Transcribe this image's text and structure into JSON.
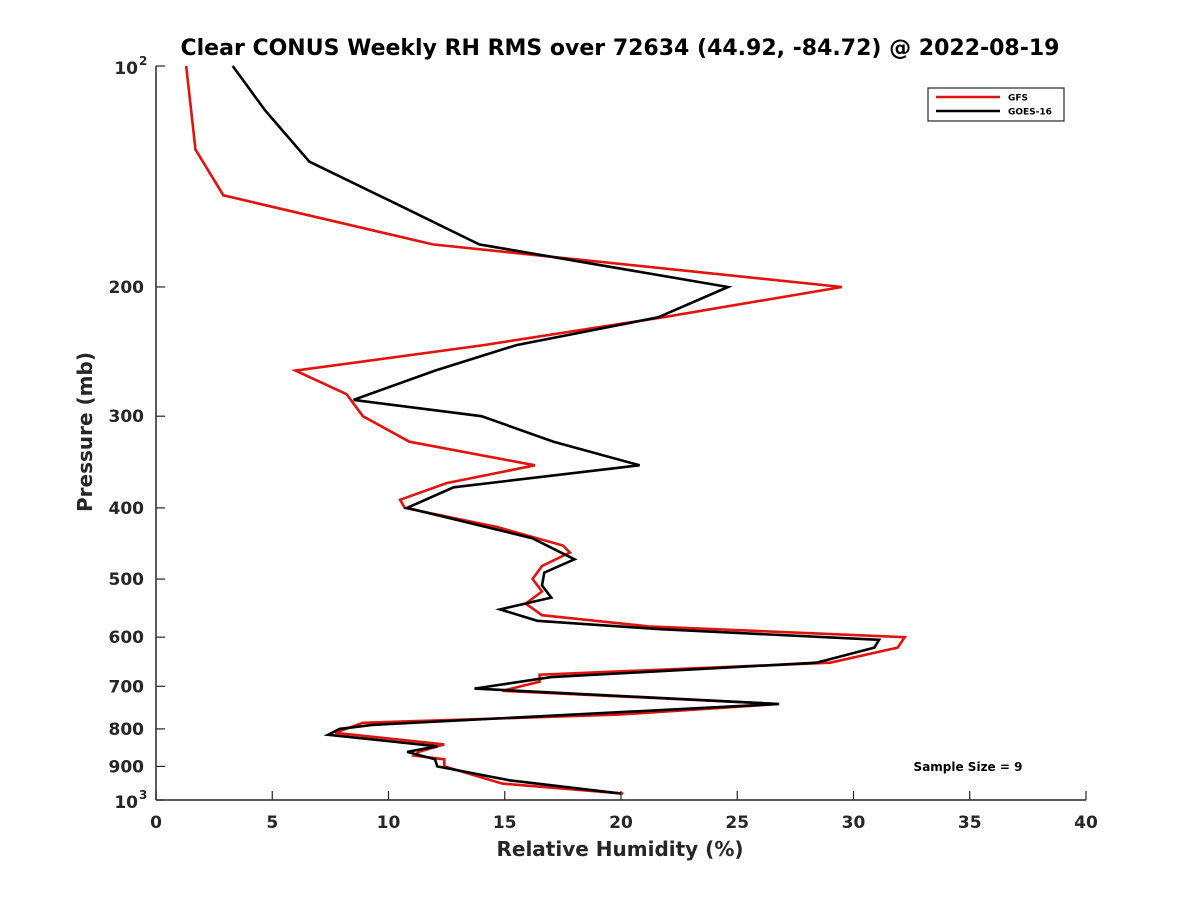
{
  "chart_data": {
    "type": "line",
    "title": "Clear CONUS Weekly RH RMS over 72634 (44.92, -84.72) @ 2022-08-19",
    "xlabel": "Relative Humidity (%)",
    "ylabel": "Pressure (mb)",
    "xlim": [
      0,
      40
    ],
    "ylim": [
      100,
      1000
    ],
    "yscale": "log",
    "y_reversed": true,
    "x_ticks": [
      0,
      5,
      10,
      15,
      20,
      25,
      30,
      35,
      40
    ],
    "y_ticks": [
      {
        "value": 100,
        "label": "10",
        "exponent": "2"
      },
      {
        "value": 200,
        "label": "200"
      },
      {
        "value": 300,
        "label": "300"
      },
      {
        "value": 400,
        "label": "400"
      },
      {
        "value": 500,
        "label": "500"
      },
      {
        "value": 600,
        "label": "600"
      },
      {
        "value": 700,
        "label": "700"
      },
      {
        "value": 800,
        "label": "800"
      },
      {
        "value": 900,
        "label": "900"
      },
      {
        "value": 1000,
        "label": "10",
        "exponent": "3"
      }
    ],
    "legend_position": "top-right",
    "annotation": "Sample Size = 9",
    "series": [
      {
        "name": "GFS",
        "color": "#e3120b",
        "points": [
          [
            1.3,
            100
          ],
          [
            1.7,
            130
          ],
          [
            2.9,
            150
          ],
          [
            11.9,
            175
          ],
          [
            29.5,
            200
          ],
          [
            21.8,
            220
          ],
          [
            14.1,
            240
          ],
          [
            6.0,
            260
          ],
          [
            8.2,
            280
          ],
          [
            8.9,
            300
          ],
          [
            10.9,
            325
          ],
          [
            16.3,
            350
          ],
          [
            12.5,
            370
          ],
          [
            10.5,
            390
          ],
          [
            10.7,
            400
          ],
          [
            14.7,
            425
          ],
          [
            17.5,
            450
          ],
          [
            17.8,
            460
          ],
          [
            16.6,
            480
          ],
          [
            16.2,
            500
          ],
          [
            16.6,
            520
          ],
          [
            15.9,
            540
          ],
          [
            16.6,
            560
          ],
          [
            21.2,
            580
          ],
          [
            32.2,
            600
          ],
          [
            31.9,
            620
          ],
          [
            29.0,
            650
          ],
          [
            16.5,
            675
          ],
          [
            16.5,
            690
          ],
          [
            14.9,
            710
          ],
          [
            26.8,
            740
          ],
          [
            19.9,
            765
          ],
          [
            8.9,
            785
          ],
          [
            7.7,
            810
          ],
          [
            12.4,
            840
          ],
          [
            11.3,
            860
          ],
          [
            11.1,
            870
          ],
          [
            12.4,
            880
          ],
          [
            12.4,
            900
          ],
          [
            14.9,
            950
          ],
          [
            20.1,
            980
          ]
        ]
      },
      {
        "name": "GOES-16",
        "color": "#000000",
        "points": [
          [
            3.3,
            100
          ],
          [
            4.7,
            115
          ],
          [
            6.6,
            135
          ],
          [
            10.5,
            155
          ],
          [
            13.9,
            175
          ],
          [
            24.6,
            200
          ],
          [
            21.6,
            220
          ],
          [
            15.5,
            240
          ],
          [
            12.0,
            260
          ],
          [
            8.5,
            285
          ],
          [
            14.0,
            300
          ],
          [
            17.1,
            325
          ],
          [
            20.8,
            350
          ],
          [
            12.8,
            375
          ],
          [
            10.8,
            400
          ],
          [
            16.2,
            440
          ],
          [
            18.0,
            470
          ],
          [
            16.7,
            490
          ],
          [
            16.6,
            510
          ],
          [
            17.0,
            530
          ],
          [
            14.8,
            550
          ],
          [
            16.4,
            570
          ],
          [
            21.6,
            585
          ],
          [
            31.1,
            605
          ],
          [
            30.9,
            620
          ],
          [
            28.4,
            650
          ],
          [
            17.0,
            680
          ],
          [
            13.7,
            705
          ],
          [
            26.8,
            740
          ],
          [
            9.3,
            790
          ],
          [
            7.9,
            800
          ],
          [
            7.4,
            815
          ],
          [
            12.1,
            845
          ],
          [
            10.8,
            860
          ],
          [
            12.0,
            880
          ],
          [
            12.1,
            900
          ],
          [
            15.2,
            940
          ],
          [
            20.0,
            980
          ]
        ]
      }
    ]
  }
}
